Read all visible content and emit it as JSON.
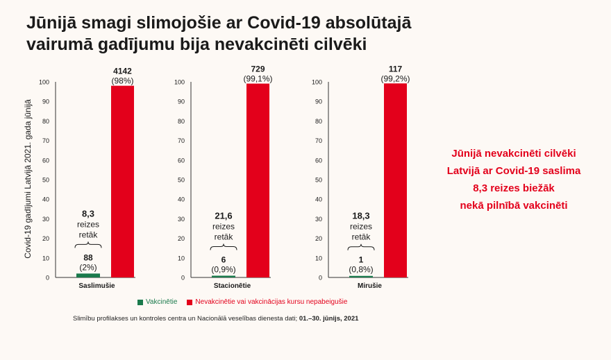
{
  "title": {
    "line1": "Jūnijā smagi slimojošie ar Covid-19 absolūtajā",
    "line2": "vairumā gadījumu bija nevakcinēti cilvēki"
  },
  "callout": {
    "line1": "Jūnijā nevakcinēti cilvēki",
    "line2": "Latvijā ar Covid-19 saslima",
    "line3": "8,3 reizes biežāk",
    "line4": "nekā pilnībā vakcinēti"
  },
  "legend": {
    "vaccinated": "Vakcinētie",
    "unvaccinated": "Nevakcinētie vai vakcinācijas kursu nepabeigušie"
  },
  "source": {
    "text": "Slimību profilakses un kontroles centra un Nacionālā veselības dienesta dati; ",
    "dates": "01.–30. jūnijs, 2021"
  },
  "colors": {
    "vaccinated": "#1a7a4c",
    "unvaccinated": "#e3001b"
  },
  "chart_data": {
    "type": "bar",
    "ylabel": "Covid-19 gadījumi Latvijā 2021. gada jūnijā",
    "ylim": [
      0,
      100
    ],
    "yticks": [
      0,
      10,
      20,
      30,
      40,
      50,
      60,
      70,
      80,
      90,
      100
    ],
    "series_names": [
      "Vakcinētie",
      "Nevakcinētie vai vakcinācijas kursu nepabeigušie"
    ],
    "panels": [
      {
        "category": "Saslimušie",
        "vaccinated": {
          "percent": 2,
          "count": "88",
          "pct_label": "(2%)"
        },
        "unvaccinated": {
          "percent": 98,
          "count": "4142",
          "pct_label": "(98%)"
        },
        "ratio": {
          "value": "8,3",
          "line2": "reizes",
          "line3": "retāk"
        }
      },
      {
        "category": "Stacionētie",
        "vaccinated": {
          "percent": 0.9,
          "count": "6",
          "pct_label": "(0,9%)"
        },
        "unvaccinated": {
          "percent": 99.1,
          "count": "729",
          "pct_label": "(99,1%)"
        },
        "ratio": {
          "value": "21,6",
          "line2": "reizes",
          "line3": "retāk"
        }
      },
      {
        "category": "Mirušie",
        "vaccinated": {
          "percent": 0.8,
          "count": "1",
          "pct_label": "(0,8%)"
        },
        "unvaccinated": {
          "percent": 99.2,
          "count": "117",
          "pct_label": "(99,2%)"
        },
        "ratio": {
          "value": "18,3",
          "line2": "reizes",
          "line3": "retāk"
        }
      }
    ]
  }
}
